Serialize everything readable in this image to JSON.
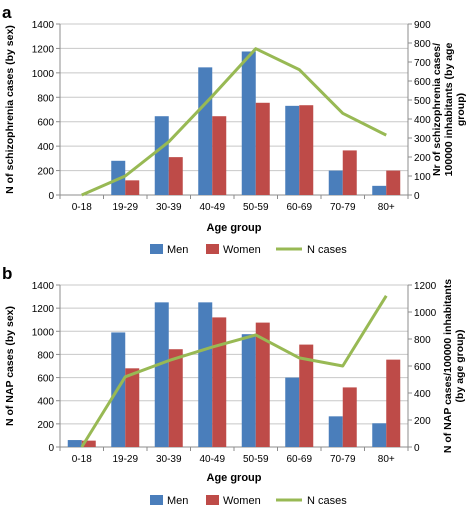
{
  "chart_data": [
    {
      "panel_label": "a",
      "type": "bar",
      "categories": [
        "0-18",
        "19-29",
        "30-39",
        "40-49",
        "50-59",
        "60-69",
        "70-79",
        "80+"
      ],
      "xlabel": "Age group",
      "ylabel": "N of schizophrenia cases (by sex)",
      "y2label": "Nr of schizophrenia cases/ 100000 inhabitants (by age group)",
      "ylim": [
        0,
        1400
      ],
      "y2lim": [
        0,
        900
      ],
      "yticks": [
        0,
        200,
        400,
        600,
        800,
        1000,
        1200,
        1400
      ],
      "y2ticks": [
        0,
        100,
        200,
        300,
        400,
        500,
        600,
        700,
        800,
        900
      ],
      "grid": true,
      "legend_position": "bottom",
      "series": [
        {
          "name": "Men",
          "kind": "bar",
          "axis": "left",
          "color": "#4a7ebb",
          "values": [
            0,
            280,
            645,
            1045,
            1175,
            730,
            200,
            75
          ]
        },
        {
          "name": "Women",
          "kind": "bar",
          "axis": "left",
          "color": "#be4b48",
          "values": [
            0,
            120,
            310,
            645,
            755,
            735,
            365,
            200
          ]
        },
        {
          "name": "N cases",
          "kind": "line",
          "axis": "right",
          "color": "#98b954",
          "values": [
            0,
            100,
            280,
            520,
            770,
            660,
            430,
            315
          ]
        }
      ]
    },
    {
      "panel_label": "b",
      "type": "bar",
      "categories": [
        "0-18",
        "19-29",
        "30-39",
        "40-49",
        "50-59",
        "60-69",
        "70-79",
        "80+"
      ],
      "xlabel": "Age group",
      "ylabel": "N of NAP cases (by sex)",
      "y2label": "N of NAP cases/100000 inhabitants (by age group)",
      "ylim": [
        0,
        1400
      ],
      "y2lim": [
        0,
        1200
      ],
      "yticks": [
        0,
        200,
        400,
        600,
        800,
        1000,
        1200,
        1400
      ],
      "y2ticks": [
        0,
        200,
        400,
        600,
        800,
        1000,
        1200
      ],
      "grid": true,
      "legend_position": "bottom",
      "series": [
        {
          "name": "Men",
          "kind": "bar",
          "axis": "left",
          "color": "#4a7ebb",
          "values": [
            60,
            990,
            1250,
            1250,
            975,
            600,
            265,
            205
          ]
        },
        {
          "name": "Women",
          "kind": "bar",
          "axis": "left",
          "color": "#be4b48",
          "values": [
            55,
            680,
            845,
            1120,
            1075,
            885,
            515,
            755
          ]
        },
        {
          "name": "N cases",
          "kind": "line",
          "axis": "right",
          "color": "#98b954",
          "values": [
            0,
            520,
            640,
            740,
            830,
            660,
            600,
            1120
          ]
        }
      ]
    }
  ]
}
